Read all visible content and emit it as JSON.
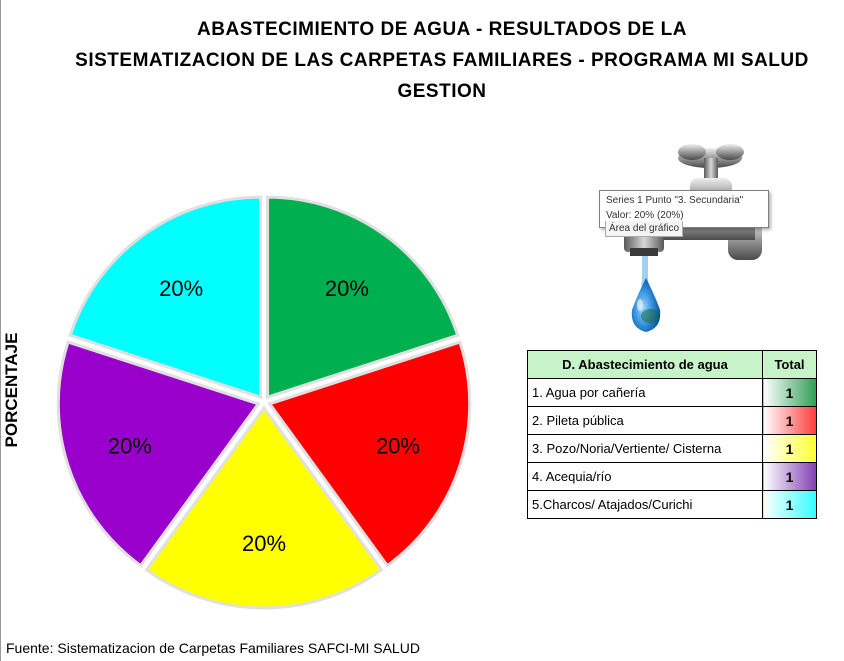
{
  "chart_data": {
    "type": "pie",
    "title_lines": [
      "ABASTECIMIENTO DE AGUA - RESULTADOS DE LA",
      "SISTEMATIZACION DE LAS CARPETAS FAMILIARES - PROGRAMA MI SALUD",
      "GESTION"
    ],
    "ylabel": "PORCENTAJE",
    "categories": [
      "1. Agua por cañería",
      "2. Pileta pública",
      "3. Pozo/Noria/Vertiente/ Cisterna",
      "4. Acequia/río",
      "5.Charcos/ Atajados/Curichi"
    ],
    "values": [
      1,
      1,
      1,
      1,
      1
    ],
    "percent_labels": [
      "20%",
      "20%",
      "20%",
      "20%",
      "20%"
    ],
    "colors": [
      "#00b050",
      "#ff0000",
      "#ffff00",
      "#9900cc",
      "#00ffff"
    ]
  },
  "table": {
    "header_category": "D. Abastecimiento de agua",
    "header_total": "Total",
    "total_gradient_colors": [
      "#2e9e55",
      "#ff3b3b",
      "#ffff33",
      "#8040b0",
      "#33ffff"
    ]
  },
  "tooltip": {
    "line1": "Series 1 Punto \"3. Secundaria\"",
    "line2": "Valor: 20% (20%)",
    "behind_text": "Área del gráfico"
  },
  "source": "Fuente: Sistematizacion de Carpetas Familiares SAFCI-MI SALUD"
}
